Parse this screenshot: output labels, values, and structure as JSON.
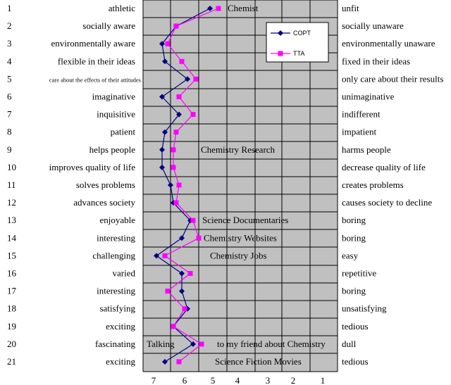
{
  "colors": {
    "plot_bg": "#c0c0c0",
    "grid": "#000000",
    "copt": "#000080",
    "tta": "#ff00ff"
  },
  "chart_data": {
    "type": "line",
    "title": "",
    "xlabel": "",
    "ylabel": "",
    "xlim": [
      7.5,
      0.5
    ],
    "x_reversed": true,
    "x_ticks": [
      "7",
      "6",
      "5",
      "4",
      "3",
      "2",
      "1"
    ],
    "grid": true,
    "legend_position": "top-right",
    "items": [
      {
        "n": "1",
        "left": "athletic",
        "right": "unfit"
      },
      {
        "n": "2",
        "left": "socially aware",
        "right": "socially unaware"
      },
      {
        "n": "3",
        "left": "environmentally aware",
        "right": "environmentally unaware"
      },
      {
        "n": "4",
        "left": "flexible in their ideas",
        "right": "fixed in their ideas"
      },
      {
        "n": "5",
        "left": "care about the effects of their attitudes",
        "right": "only care about their results"
      },
      {
        "n": "6",
        "left": "imaginative",
        "right": "unimaginative"
      },
      {
        "n": "7",
        "left": "inquisitive",
        "right": "indifferent"
      },
      {
        "n": "8",
        "left": "patient",
        "right": "impatient"
      },
      {
        "n": "9",
        "left": "helps people",
        "right": "harms people"
      },
      {
        "n": "10",
        "left": "improves quality of life",
        "right": "decrease quality of life"
      },
      {
        "n": "11",
        "left": "solves problems",
        "right": "creates problems"
      },
      {
        "n": "12",
        "left": "advances society",
        "right": "causes society to decline"
      },
      {
        "n": "13",
        "left": "enjoyable",
        "right": "boring"
      },
      {
        "n": "14",
        "left": "interesting",
        "right": "boring"
      },
      {
        "n": "15",
        "left": "challenging",
        "right": "easy"
      },
      {
        "n": "16",
        "left": "varied",
        "right": "repetitive"
      },
      {
        "n": "17",
        "left": "interesting",
        "right": "boring"
      },
      {
        "n": "18",
        "left": "satisfying",
        "right": "unsatisfying"
      },
      {
        "n": "19",
        "left": "exciting",
        "right": "tedious"
      },
      {
        "n": "20",
        "left": "fascinating",
        "right": "dull"
      },
      {
        "n": "21",
        "left": "exciting",
        "right": "tedious"
      }
    ],
    "series": [
      {
        "name": "COPT",
        "values": [
          5.1,
          6.3,
          6.8,
          6.7,
          5.9,
          6.8,
          6.2,
          6.7,
          6.8,
          6.8,
          6.5,
          6.4,
          5.8,
          6.1,
          7.0,
          6.1,
          6.1,
          5.9,
          6.4,
          5.7,
          6.7
        ]
      },
      {
        "name": "TTA",
        "values": [
          4.8,
          6.3,
          6.6,
          6.1,
          5.6,
          6.2,
          5.7,
          6.3,
          6.4,
          6.4,
          6.2,
          6.3,
          5.7,
          5.5,
          6.7,
          5.8,
          6.6,
          6.0,
          6.4,
          5.4,
          6.2
        ]
      }
    ],
    "annotations": [
      {
        "text": "Chemist",
        "row": 1
      },
      {
        "text": "Chemistry Research",
        "row": 9
      },
      {
        "text": "Science Documentaries",
        "row": 13
      },
      {
        "text": "Chemistry Websites",
        "row": 14
      },
      {
        "text": "Chemistry Jobs",
        "row": 15
      },
      {
        "text": "Talking",
        "row": 20,
        "part": "left"
      },
      {
        "text": "to my friend about Chemistry",
        "row": 20,
        "part": "right"
      },
      {
        "text": "Science Fiction Movies",
        "row": 21
      }
    ]
  }
}
